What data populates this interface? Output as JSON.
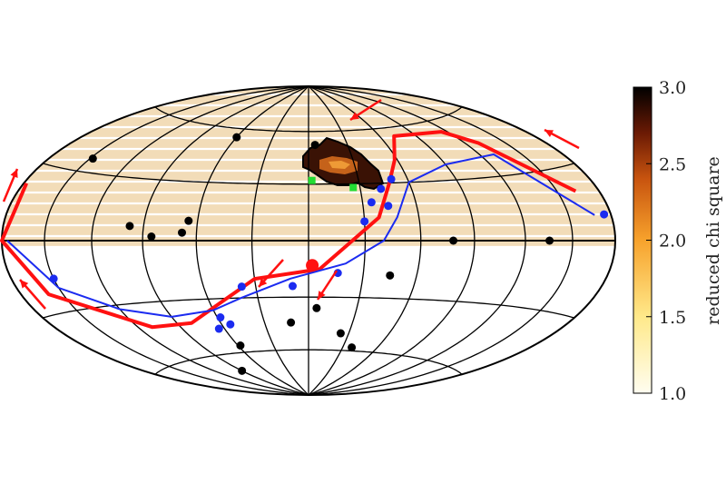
{
  "chart_data": {
    "type": "heatmap",
    "projection": "hammer-aitoff",
    "colorbar": {
      "label": "reduced chi square",
      "ticks": [
        "1.0",
        "1.5",
        "2.0",
        "2.5",
        "3.0"
      ],
      "range": [
        1.0,
        3.0
      ],
      "colors": [
        "#fffdf0",
        "#ffe98a",
        "#f7a22c",
        "#c8540f",
        "#6b1a04",
        "#000000"
      ]
    },
    "colors": {
      "band": "#f2dcb8",
      "red_path": "#ff1111",
      "blue_path": "#1b2bf0",
      "black_points": "#000000",
      "blue_points": "#1b2bf0",
      "green_points": "#22dd33",
      "grid": "#000000"
    },
    "series": [
      {
        "kind": "line",
        "color": "red",
        "points_lonlat": [
          [
            163,
            20
          ],
          [
            130,
            46
          ],
          [
            115,
            54
          ],
          [
            72,
            55
          ],
          [
            58,
            42
          ],
          [
            48,
            30
          ],
          [
            38,
            12
          ],
          [
            6,
            -15
          ],
          [
            -30,
            -20
          ],
          [
            -80,
            -42
          ],
          [
            -110,
            -42
          ],
          [
            -160,
            -22
          ],
          [
            -180,
            0
          ],
          [
            -178,
            22
          ]
        ]
      },
      {
        "kind": "line",
        "color": "blue",
        "points_lonlat": [
          [
            168,
            10
          ],
          [
            130,
            40
          ],
          [
            90,
            38
          ],
          [
            60,
            30
          ],
          [
            48,
            12
          ],
          [
            40,
            0
          ],
          [
            20,
            -12
          ],
          [
            -10,
            -20
          ],
          [
            -40,
            -30
          ],
          [
            -60,
            -36
          ],
          [
            -90,
            -38
          ],
          [
            -120,
            -32
          ],
          [
            -150,
            -20
          ],
          [
            -176,
            0
          ]
        ]
      },
      {
        "kind": "scatter",
        "color": "black",
        "points_lonlat": [
          [
            -60,
            55
          ],
          [
            5,
            52
          ],
          [
            -148,
            36
          ],
          [
            -98,
            7
          ],
          [
            -65,
            10
          ],
          [
            -85,
            2
          ],
          [
            -68,
            4
          ],
          [
            45,
            -18
          ],
          [
            78,
            0
          ],
          [
            135,
            0
          ],
          [
            5,
            -36
          ],
          [
            -12,
            -44
          ],
          [
            -58,
            -56
          ],
          [
            24,
            -50
          ],
          [
            38,
            -58
          ],
          [
            -90,
            -70
          ]
        ]
      },
      {
        "kind": "scatter",
        "color": "blue",
        "points_lonlat": [
          [
            50,
            32
          ],
          [
            42,
            27
          ],
          [
            35,
            20
          ],
          [
            44,
            18
          ],
          [
            30,
            10
          ],
          [
            16,
            -17
          ],
          [
            -9,
            -24
          ],
          [
            -38,
            -24
          ],
          [
            -54,
            -44
          ],
          [
            -58,
            -40
          ],
          [
            -64,
            -46
          ],
          [
            -150,
            -16
          ],
          [
            175,
            10
          ]
        ]
      },
      {
        "kind": "scatter",
        "color": "green",
        "points_lonlat": [
          [
            2,
            32
          ],
          [
            26,
            28
          ]
        ]
      }
    ],
    "xlabel": "",
    "ylabel": "",
    "grid": true
  }
}
